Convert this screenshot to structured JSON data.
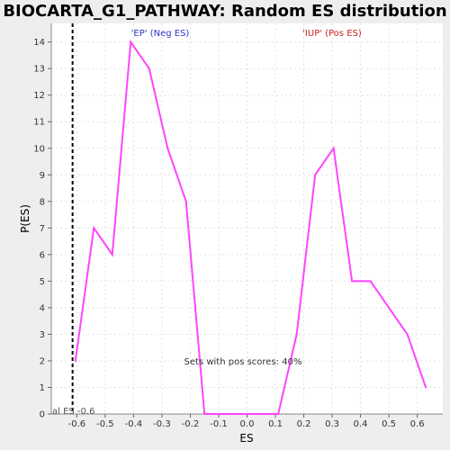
{
  "chart_data": {
    "type": "line",
    "title": "BIOCARTA_G1_PATHWAY: Random ES distribution",
    "xlabel": "ES",
    "ylabel": "P(ES)",
    "xlim": [
      -0.69,
      0.69
    ],
    "ylim": [
      0,
      14.7
    ],
    "x_ticks": [
      -0.6,
      -0.5,
      -0.4,
      -0.3,
      -0.2,
      -0.1,
      0.0,
      0.1,
      0.2,
      0.3,
      0.4,
      0.5,
      0.6
    ],
    "y_ticks": [
      0,
      1,
      2,
      3,
      4,
      5,
      6,
      7,
      8,
      9,
      10,
      11,
      12,
      13,
      14
    ],
    "grid": true,
    "series": [
      {
        "color": "#ff44ff",
        "x": [
          -0.605,
          -0.54,
          -0.475,
          -0.41,
          -0.345,
          -0.28,
          -0.215,
          -0.15,
          -0.085,
          -0.02,
          0.045,
          0.11,
          0.175,
          0.24,
          0.305,
          0.37,
          0.435,
          0.5,
          0.565,
          0.63
        ],
        "y": [
          2,
          7,
          6,
          14,
          13,
          10,
          8,
          0,
          0,
          0,
          0,
          0,
          3,
          9,
          10,
          5,
          5,
          4,
          3,
          1
        ]
      }
    ],
    "vline": {
      "x": -0.615,
      "color": "#000000",
      "style": "dashed"
    },
    "annotations": {
      "neg_label": "'EP' (Neg ES)",
      "neg_color": "#3333cc",
      "pos_label": "'IUP' (Pos ES)",
      "pos_color": "#cc2222",
      "pos_scores": "Sets with pos scores: 40%",
      "actual_es": "al ES -0.6"
    }
  }
}
